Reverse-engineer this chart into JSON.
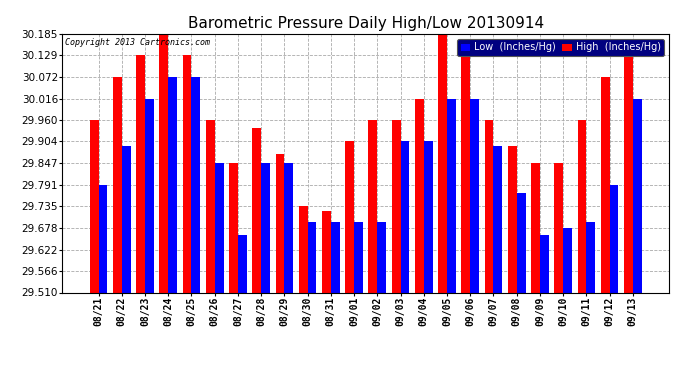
{
  "title": "Barometric Pressure Daily High/Low 20130914",
  "copyright": "Copyright 2013 Cartronics.com",
  "legend_low": "Low  (Inches/Hg)",
  "legend_high": "High  (Inches/Hg)",
  "dates": [
    "08/21",
    "08/22",
    "08/23",
    "08/24",
    "08/25",
    "08/26",
    "08/27",
    "08/28",
    "08/29",
    "08/30",
    "08/31",
    "09/01",
    "09/02",
    "09/03",
    "09/04",
    "09/05",
    "09/06",
    "09/07",
    "09/08",
    "09/09",
    "09/10",
    "09/11",
    "09/12",
    "09/13"
  ],
  "low_values": [
    29.791,
    29.893,
    30.016,
    30.072,
    30.072,
    29.847,
    29.66,
    29.847,
    29.847,
    29.693,
    29.693,
    29.693,
    29.693,
    29.904,
    29.904,
    30.016,
    30.016,
    29.893,
    29.77,
    29.66,
    29.678,
    29.693,
    29.791,
    30.016
  ],
  "high_values": [
    29.96,
    30.072,
    30.129,
    30.185,
    30.129,
    29.96,
    29.847,
    29.94,
    29.87,
    29.735,
    29.722,
    29.904,
    29.96,
    29.96,
    30.016,
    30.185,
    30.129,
    29.96,
    29.893,
    29.847,
    29.847,
    29.96,
    30.072,
    30.129
  ],
  "ylim_min": 29.51,
  "ylim_max": 30.185,
  "yticks": [
    29.51,
    29.566,
    29.622,
    29.678,
    29.735,
    29.791,
    29.847,
    29.904,
    29.96,
    30.016,
    30.072,
    30.129,
    30.185
  ],
  "bar_width": 0.38,
  "low_color": "#0000ff",
  "high_color": "#ff0000",
  "bg_color": "#ffffff",
  "grid_color": "#aaaaaa",
  "title_fontsize": 11,
  "copyright_fontsize": 6,
  "xtick_fontsize": 7,
  "ytick_fontsize": 7.5,
  "legend_fontsize": 7
}
